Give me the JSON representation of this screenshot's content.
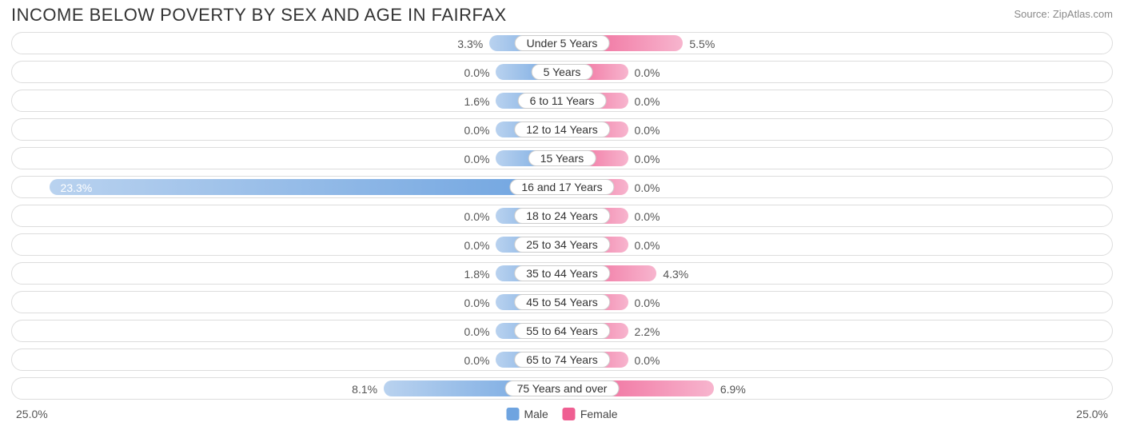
{
  "title": "INCOME BELOW POVERTY BY SEX AND AGE IN FAIRFAX",
  "source": "Source: ZipAtlas.com",
  "chart": {
    "type": "diverging-bar",
    "axis_max": 25.0,
    "axis_label_left": "25.0%",
    "axis_label_right": "25.0%",
    "min_bar_pct": 3.0,
    "track_border_color": "#dddddd",
    "track_bg": "#ffffff",
    "label_fontsize": 14,
    "title_fontsize": 22,
    "male_color_dark": "#6fa4e0",
    "male_color_light": "#b9d2ef",
    "female_color_dark": "#ef5f92",
    "female_color_light": "#f7b5ce",
    "legend": {
      "male_label": "Male",
      "female_label": "Female"
    },
    "categories": [
      {
        "label": "Under 5 Years",
        "male": 3.3,
        "female": 5.5
      },
      {
        "label": "5 Years",
        "male": 0.0,
        "female": 0.0
      },
      {
        "label": "6 to 11 Years",
        "male": 1.6,
        "female": 0.0
      },
      {
        "label": "12 to 14 Years",
        "male": 0.0,
        "female": 0.0
      },
      {
        "label": "15 Years",
        "male": 0.0,
        "female": 0.0
      },
      {
        "label": "16 and 17 Years",
        "male": 23.3,
        "female": 0.0
      },
      {
        "label": "18 to 24 Years",
        "male": 0.0,
        "female": 0.0
      },
      {
        "label": "25 to 34 Years",
        "male": 0.0,
        "female": 0.0
      },
      {
        "label": "35 to 44 Years",
        "male": 1.8,
        "female": 4.3
      },
      {
        "label": "45 to 54 Years",
        "male": 0.0,
        "female": 0.0
      },
      {
        "label": "55 to 64 Years",
        "male": 0.0,
        "female": 2.2
      },
      {
        "label": "65 to 74 Years",
        "male": 0.0,
        "female": 0.0
      },
      {
        "label": "75 Years and over",
        "male": 8.1,
        "female": 6.9
      }
    ]
  }
}
